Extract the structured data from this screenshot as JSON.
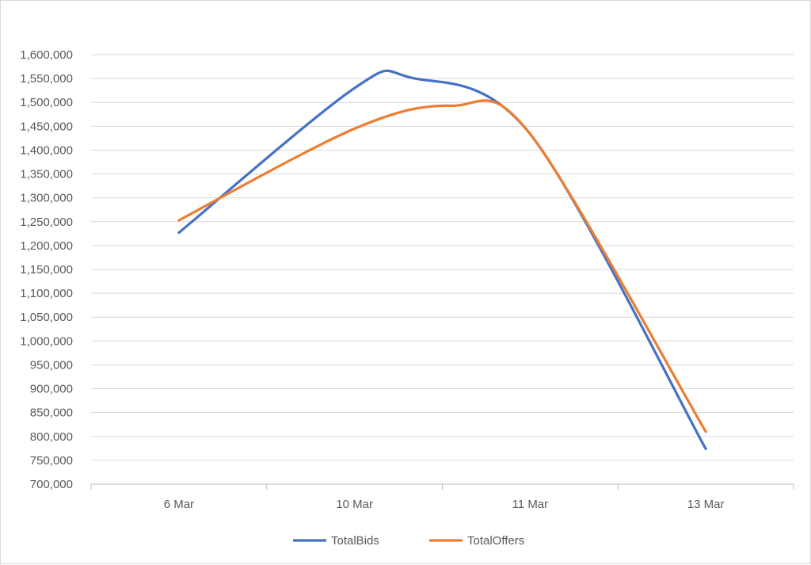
{
  "chart_data": {
    "type": "line",
    "smooth": true,
    "categories": [
      "6 Mar",
      "10 Mar",
      "11 Mar",
      "13 Mar"
    ],
    "series": [
      {
        "name": "TotalBids",
        "color": "#4472c4",
        "values": [
          1227000,
          1530000,
          1434000,
          774000
        ],
        "peak": {
          "after_index": 1,
          "value": 1552000
        }
      },
      {
        "name": "TotalOffers",
        "color": "#ed7d31",
        "values": [
          1253000,
          1445000,
          1434000,
          810000
        ],
        "peak": {
          "after_index": 1,
          "value": 1493000
        }
      }
    ],
    "ylim": [
      700000,
      1600000
    ],
    "ystep": 50000,
    "grid": true,
    "legend": "bottom",
    "title": "",
    "xlabel": "",
    "ylabel": ""
  }
}
